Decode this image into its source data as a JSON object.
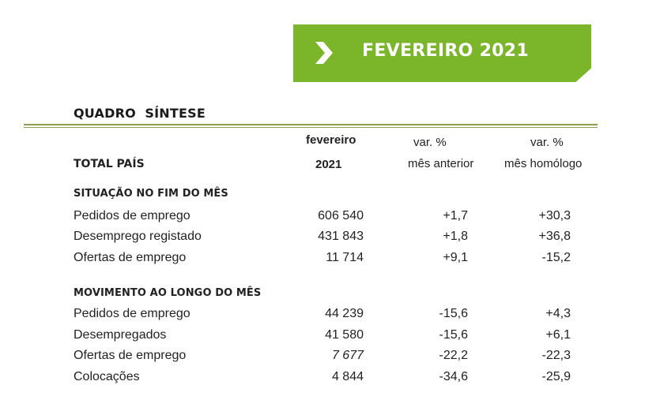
{
  "banner": {
    "title": "FEVEREIRO 2021",
    "icon": "chevron-right-icon",
    "color": "#7ab52a"
  },
  "section_title": "QUADRO  SÍNTESE",
  "header": {
    "row_label": "TOTAL PAÍS",
    "col1": {
      "line1": "fevereiro",
      "line2": "2021"
    },
    "col2": {
      "line1": "var. %",
      "line2": "mês anterior"
    },
    "col3": {
      "line1": "var. %",
      "line2": "mês homólogo"
    }
  },
  "groups": [
    {
      "title": "SITUAÇÃO NO FIM DO MÊS",
      "rows": [
        {
          "label": "Pedidos de emprego",
          "value": "606 540",
          "var_prev": "+1,7",
          "var_yoy": "+30,3"
        },
        {
          "label": "Desemprego registado",
          "value": "431 843",
          "var_prev": "+1,8",
          "var_yoy": "+36,8"
        },
        {
          "label": "Ofertas de emprego",
          "value": "11 714",
          "var_prev": "+9,1",
          "var_yoy": "-15,2"
        }
      ]
    },
    {
      "title": "MOVIMENTO AO LONGO DO MÊS",
      "rows": [
        {
          "label": "Pedidos de emprego",
          "value": "44 239",
          "var_prev": "-15,6",
          "var_yoy": "+4,3"
        },
        {
          "label": "Desempregados",
          "value": "41 580",
          "var_prev": "-15,6",
          "var_yoy": "+6,1"
        },
        {
          "label": "Ofertas de emprego",
          "value": "7 677",
          "var_prev": "-22,2",
          "var_yoy": "-22,3"
        },
        {
          "label": "Colocações",
          "value": "4 844",
          "var_prev": "-34,6",
          "var_yoy": "-25,9"
        }
      ]
    }
  ]
}
